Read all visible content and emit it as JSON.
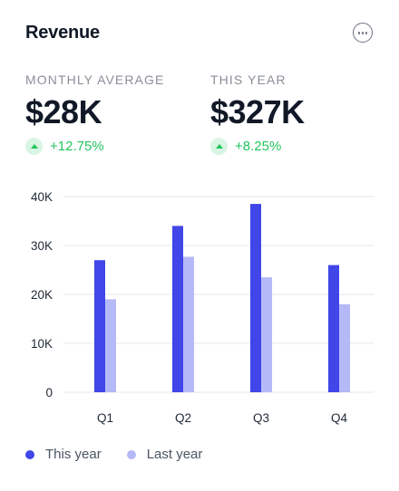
{
  "header": {
    "title": "Revenue",
    "more_icon": "more-horizontal-circle-icon"
  },
  "stats": [
    {
      "label": "MONTHLY AVERAGE",
      "value": "$28K",
      "change": "+12.75%",
      "trend_icon": "arrow-up-icon"
    },
    {
      "label": "THIS YEAR",
      "value": "$327K",
      "change": "+8.25%",
      "trend_icon": "arrow-up-icon"
    }
  ],
  "colors": {
    "this_year": "#4046e8",
    "last_year": "#b6b9f7",
    "positive": "#22c55e",
    "positive_bg": "#d9f5e3",
    "grid": "#e5e7eb"
  },
  "chart_data": {
    "type": "bar",
    "categories": [
      "Q1",
      "Q2",
      "Q3",
      "Q4"
    ],
    "series": [
      {
        "name": "This year",
        "values": [
          27000,
          34000,
          38500,
          26000
        ]
      },
      {
        "name": "Last year",
        "values": [
          19000,
          27700,
          23500,
          18000
        ]
      }
    ],
    "y_ticks": [
      "0",
      "10K",
      "20K",
      "30K",
      "40K"
    ],
    "ylim": [
      0,
      40000
    ],
    "grid": true,
    "legend_position": "bottom-left"
  }
}
